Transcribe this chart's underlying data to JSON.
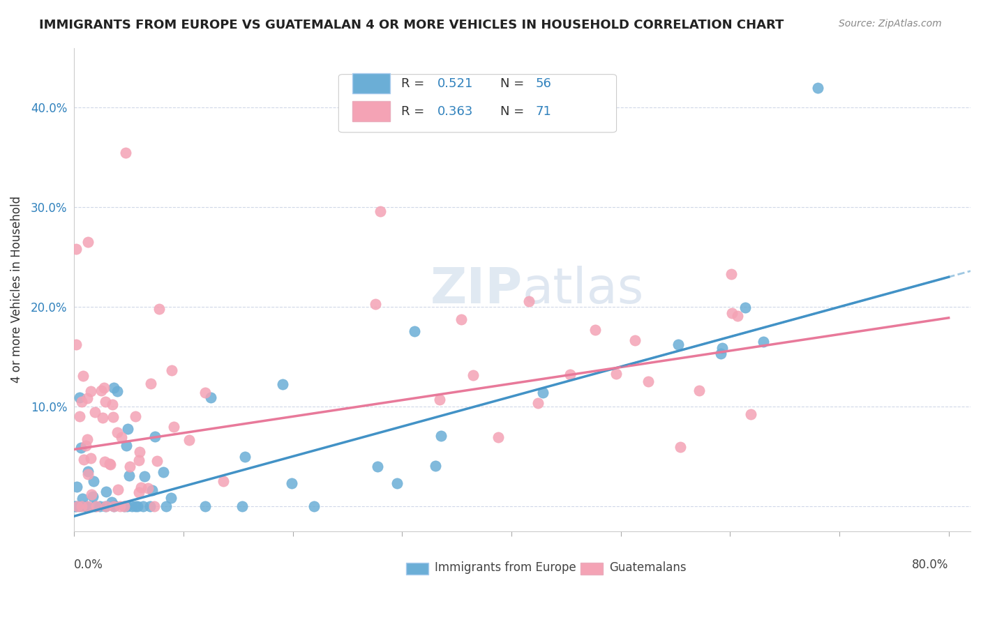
{
  "title": "IMMIGRANTS FROM EUROPE VS GUATEMALAN 4 OR MORE VEHICLES IN HOUSEHOLD CORRELATION CHART",
  "source": "Source: ZipAtlas.com",
  "ylabel": "4 or more Vehicles in Household",
  "xlim": [
    0.0,
    0.82
  ],
  "ylim": [
    -0.025,
    0.46
  ],
  "legend_r1": "0.521",
  "legend_n1": "56",
  "legend_r2": "0.363",
  "legend_n2": "71",
  "color_blue": "#6baed6",
  "color_pink": "#f4a3b5",
  "color_blue_line": "#4292c6",
  "color_pink_line": "#e8799a",
  "color_blue_text": "#3182bd",
  "watermark_zip": "ZIP",
  "watermark_atlas": "atlas",
  "blue_slope": 0.3,
  "blue_intercept": -0.01,
  "pink_slope": 0.165,
  "pink_intercept": 0.057,
  "yticks": [
    0.0,
    0.1,
    0.2,
    0.3,
    0.4
  ],
  "ytick_labels": [
    "",
    "10.0%",
    "20.0%",
    "30.0%",
    "40.0%"
  ]
}
